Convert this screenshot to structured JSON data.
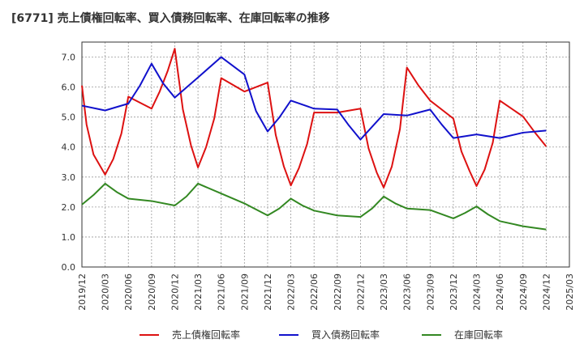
{
  "chart_data": {
    "type": "line",
    "title": "[6771]  売上債権回転率、買入債務回転率、在庫回転率の推移",
    "xlabel": "",
    "ylabel": "",
    "ylim": [
      0,
      7.5
    ],
    "yticks": [
      "0.0",
      "1.0",
      "2.0",
      "3.0",
      "4.0",
      "5.0",
      "6.0",
      "7.0"
    ],
    "x_tick_labels": [
      "2019/12",
      "2020/03",
      "2020/06",
      "2020/09",
      "2020/12",
      "2021/03",
      "2021/06",
      "2021/09",
      "2021/12",
      "2022/03",
      "2022/06",
      "2022/09",
      "2022/12",
      "2023/03",
      "2023/06",
      "2023/09",
      "2023/12",
      "2024/03",
      "2024/06",
      "2024/09",
      "2024/12",
      "2025/03"
    ],
    "legend_position": "bottom",
    "grid": true,
    "series": [
      {
        "name": "売上債権回転率",
        "color": "#dd1111",
        "points": [
          [
            0.0,
            6.05
          ],
          [
            0.2,
            4.75
          ],
          [
            0.5,
            3.75
          ],
          [
            1.0,
            3.08
          ],
          [
            1.35,
            3.6
          ],
          [
            1.7,
            4.45
          ],
          [
            2.0,
            5.68
          ],
          [
            3.0,
            5.28
          ],
          [
            3.35,
            5.85
          ],
          [
            3.7,
            6.55
          ],
          [
            4.0,
            7.28
          ],
          [
            4.35,
            5.25
          ],
          [
            4.7,
            4.05
          ],
          [
            5.0,
            3.32
          ],
          [
            5.35,
            4.0
          ],
          [
            5.7,
            4.95
          ],
          [
            6.0,
            6.3
          ],
          [
            7.0,
            5.85
          ],
          [
            8.0,
            6.15
          ],
          [
            8.35,
            4.4
          ],
          [
            8.7,
            3.35
          ],
          [
            9.0,
            2.72
          ],
          [
            9.35,
            3.3
          ],
          [
            9.7,
            4.1
          ],
          [
            10.0,
            5.15
          ],
          [
            11.0,
            5.15
          ],
          [
            12.0,
            5.28
          ],
          [
            12.35,
            3.95
          ],
          [
            12.7,
            3.15
          ],
          [
            13.0,
            2.65
          ],
          [
            13.35,
            3.35
          ],
          [
            13.7,
            4.6
          ],
          [
            14.0,
            6.65
          ],
          [
            14.5,
            6.05
          ],
          [
            15.0,
            5.55
          ],
          [
            16.0,
            4.95
          ],
          [
            16.35,
            3.85
          ],
          [
            16.7,
            3.2
          ],
          [
            17.0,
            2.7
          ],
          [
            17.35,
            3.25
          ],
          [
            17.7,
            4.15
          ],
          [
            18.0,
            5.55
          ],
          [
            19.0,
            5.02
          ],
          [
            19.5,
            4.5
          ],
          [
            20.0,
            4.02
          ]
        ]
      },
      {
        "name": "買入債務回転率",
        "color": "#1111cc",
        "points": [
          [
            0.0,
            5.38
          ],
          [
            1.0,
            5.22
          ],
          [
            2.0,
            5.45
          ],
          [
            2.5,
            6.05
          ],
          [
            3.0,
            6.78
          ],
          [
            3.5,
            6.12
          ],
          [
            4.0,
            5.65
          ],
          [
            5.0,
            6.32
          ],
          [
            6.0,
            7.0
          ],
          [
            7.0,
            6.42
          ],
          [
            7.5,
            5.2
          ],
          [
            8.0,
            4.52
          ],
          [
            8.5,
            4.98
          ],
          [
            9.0,
            5.55
          ],
          [
            10.0,
            5.28
          ],
          [
            11.0,
            5.25
          ],
          [
            11.5,
            4.72
          ],
          [
            12.0,
            4.25
          ],
          [
            13.0,
            5.1
          ],
          [
            14.0,
            5.05
          ],
          [
            15.0,
            5.25
          ],
          [
            15.5,
            4.75
          ],
          [
            16.0,
            4.3
          ],
          [
            17.0,
            4.42
          ],
          [
            18.0,
            4.3
          ],
          [
            19.0,
            4.48
          ],
          [
            20.0,
            4.55
          ]
        ]
      },
      {
        "name": "在庫回転率",
        "color": "#338822",
        "points": [
          [
            0.0,
            2.08
          ],
          [
            0.5,
            2.4
          ],
          [
            1.0,
            2.78
          ],
          [
            1.5,
            2.5
          ],
          [
            2.0,
            2.28
          ],
          [
            3.0,
            2.2
          ],
          [
            4.0,
            2.05
          ],
          [
            4.5,
            2.35
          ],
          [
            5.0,
            2.78
          ],
          [
            6.0,
            2.45
          ],
          [
            7.0,
            2.12
          ],
          [
            8.0,
            1.72
          ],
          [
            8.5,
            1.95
          ],
          [
            9.0,
            2.28
          ],
          [
            9.5,
            2.05
          ],
          [
            10.0,
            1.88
          ],
          [
            11.0,
            1.72
          ],
          [
            12.0,
            1.67
          ],
          [
            12.5,
            1.95
          ],
          [
            13.0,
            2.35
          ],
          [
            13.5,
            2.12
          ],
          [
            14.0,
            1.95
          ],
          [
            15.0,
            1.9
          ],
          [
            16.0,
            1.62
          ],
          [
            16.5,
            1.8
          ],
          [
            17.0,
            2.02
          ],
          [
            17.5,
            1.75
          ],
          [
            18.0,
            1.53
          ],
          [
            19.0,
            1.36
          ],
          [
            20.0,
            1.25
          ]
        ]
      }
    ]
  }
}
